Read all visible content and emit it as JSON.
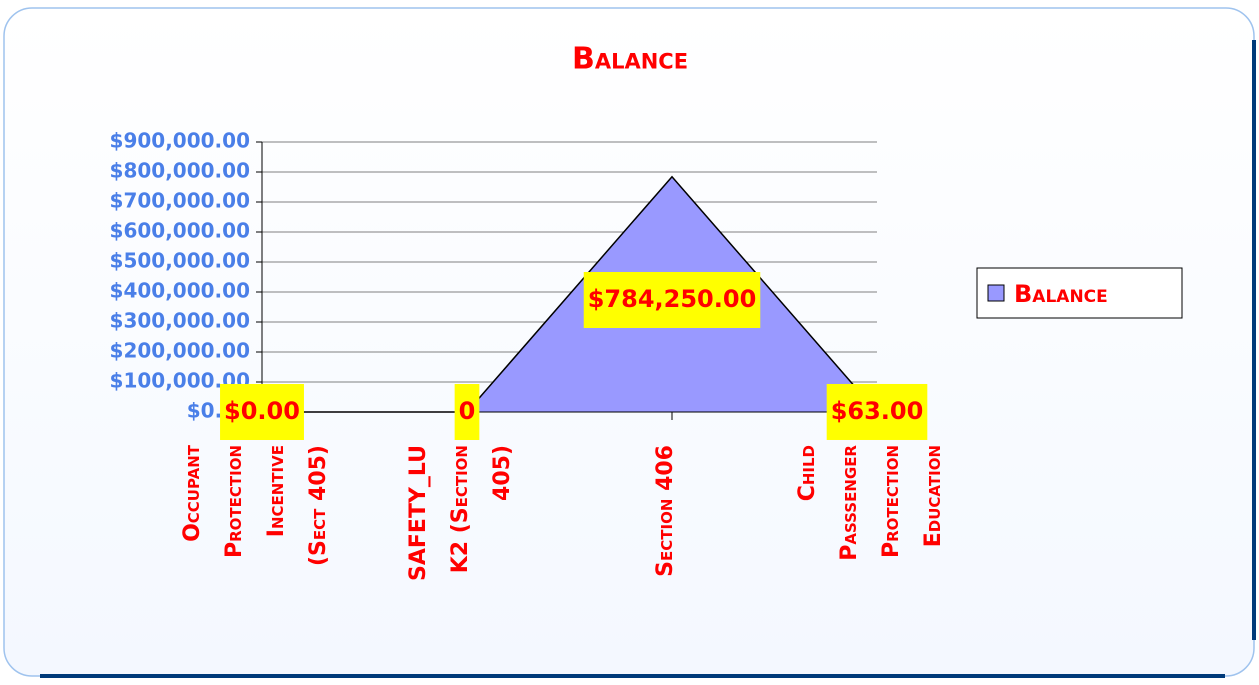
{
  "chart_data": {
    "type": "area",
    "title": "Balance",
    "categories": [
      [
        "Occupant",
        "Protection",
        "Incentive",
        "(Sect 405)"
      ],
      [
        "SAFETY_LU",
        "K2 (Section",
        "405)"
      ],
      [
        "Section 406"
      ],
      [
        "Child",
        "Passsenger",
        "Protection",
        "Education"
      ]
    ],
    "series": [
      {
        "name": "Balance",
        "color": "#9999ff",
        "values": [
          0,
          0,
          784250,
          63
        ],
        "value_labels": [
          "$0.00",
          "0",
          "$784,250.00",
          "$63.00"
        ]
      }
    ],
    "ylim": [
      0,
      900000
    ],
    "yticks": [
      {
        "value": 0,
        "label": "$0.00"
      },
      {
        "value": 100000,
        "label": "$100,000.00"
      },
      {
        "value": 200000,
        "label": "$200,000.00"
      },
      {
        "value": 300000,
        "label": "$300,000.00"
      },
      {
        "value": 400000,
        "label": "$400,000.00"
      },
      {
        "value": 500000,
        "label": "$500,000.00"
      },
      {
        "value": 600000,
        "label": "$600,000.00"
      },
      {
        "value": 700000,
        "label": "$700,000.00"
      },
      {
        "value": 800000,
        "label": "$800,000.00"
      },
      {
        "value": 900000,
        "label": "$900,000.00"
      }
    ],
    "grid": true,
    "legend": "right"
  }
}
